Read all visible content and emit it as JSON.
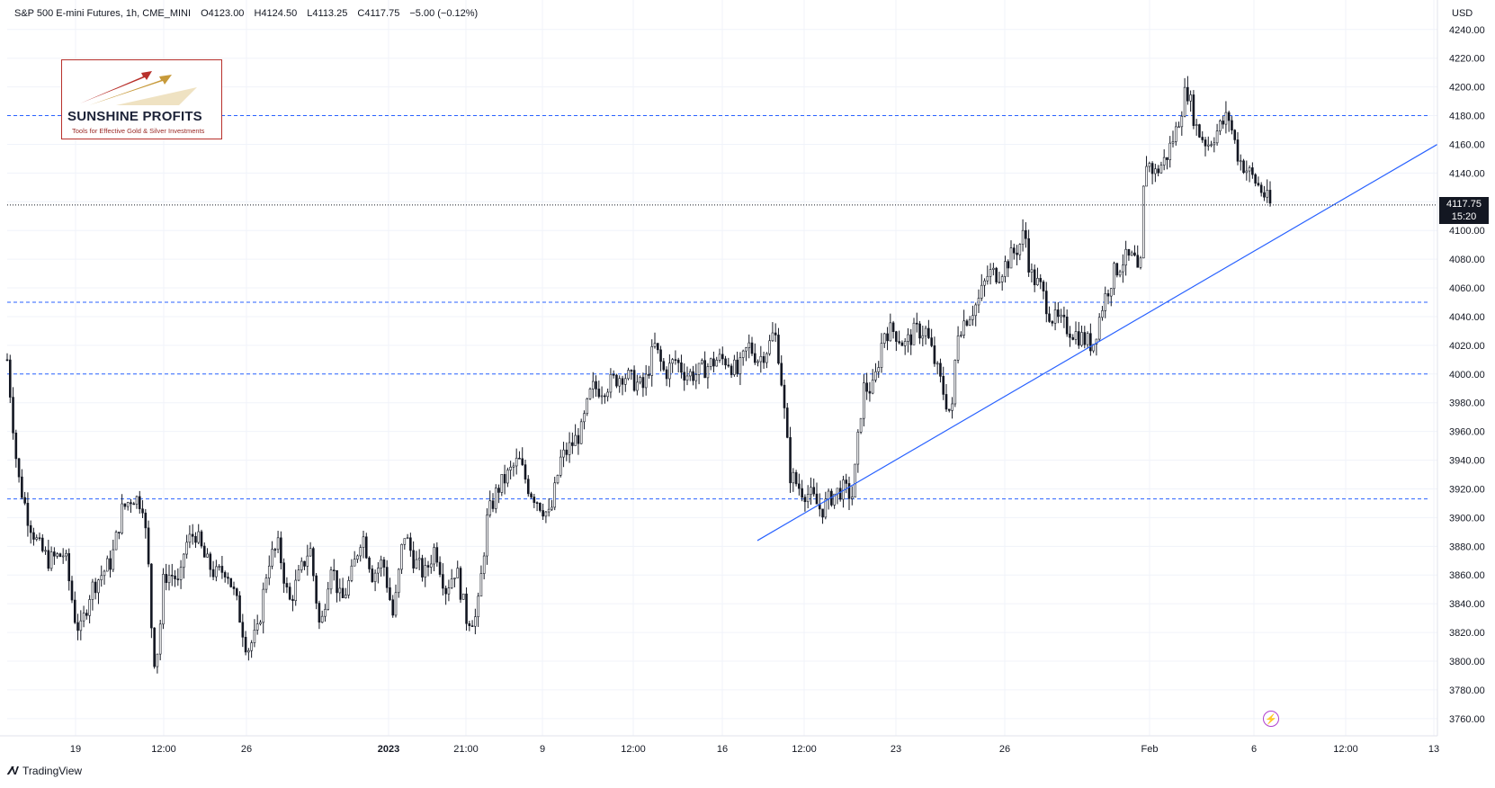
{
  "header": {
    "symbol": "S&P 500 E-mini Futures, 1h, CME_MINI",
    "open": "O4123.00",
    "high": "H4124.50",
    "low": "L4113.25",
    "close": "C4117.75",
    "change": "−5.00 (−0.12%)"
  },
  "price_scale": {
    "currency": "USD"
  },
  "last_price": {
    "value": "4117.75",
    "countdown": "15:20"
  },
  "logo": {
    "name": "SUNSHINE PROFITS",
    "tagline": "Tools for Effective Gold & Silver Investments"
  },
  "footer": {
    "brand": "TradingView",
    "logo_icon": "tradingview-logo-icon"
  },
  "alert_icon": "lightning-icon",
  "colors": {
    "candle": "#131722",
    "level_line": "#2962ff",
    "trendline": "#2962ff",
    "grid": "#f0f3fa",
    "tag_bg": "#131722"
  },
  "chart_data": {
    "type": "candlestick",
    "title": "S&P 500 E-mini Futures, 1h, CME_MINI",
    "ylabel": "USD",
    "ylim": [
      3748,
      4248
    ],
    "y_ticks": [
      3760,
      3780,
      3800,
      3820,
      3840,
      3860,
      3880,
      3900,
      3920,
      3940,
      3960,
      3980,
      4000,
      4020,
      4040,
      4060,
      4080,
      4100,
      4120,
      4140,
      4160,
      4180,
      4200,
      4220,
      4240
    ],
    "y_tick_labels": [
      "3760.00",
      "3780.00",
      "3800.00",
      "3820.00",
      "3840.00",
      "3860.00",
      "3880.00",
      "3900.00",
      "3920.00",
      "3940.00",
      "3960.00",
      "3980.00",
      "4000.00",
      "4020.00",
      "4040.00",
      "4060.00",
      "4080.00",
      "4100.00",
      "4120.00",
      "4140.00",
      "4160.00",
      "4180.00",
      "4200.00",
      "4220.00",
      "4240.00"
    ],
    "x_ticks": [
      "19",
      "12:00",
      "26",
      "2023",
      "21:00",
      "9",
      "12:00",
      "16",
      "12:00",
      "23",
      "26",
      "Feb",
      "6",
      "12:00",
      "13"
    ],
    "bold_x_ticks": [
      "2023"
    ],
    "horizontal_levels": [
      4180,
      4050,
      4000,
      3913
    ],
    "last_price": 4117.75,
    "trendline": {
      "from": [
        0.5635,
        3884
      ],
      "to": [
        1.0,
        4160
      ]
    },
    "path": [
      [
        0.0,
        4010
      ],
      [
        0.01,
        3930
      ],
      [
        0.02,
        3900
      ],
      [
        0.03,
        3880
      ],
      [
        0.04,
        3870
      ],
      [
        0.055,
        3875
      ],
      [
        0.065,
        3830
      ],
      [
        0.07,
        3820
      ],
      [
        0.08,
        3850
      ],
      [
        0.09,
        3860
      ],
      [
        0.1,
        3870
      ],
      [
        0.11,
        3905
      ],
      [
        0.12,
        3915
      ],
      [
        0.13,
        3910
      ],
      [
        0.135,
        3870
      ],
      [
        0.14,
        3800
      ],
      [
        0.145,
        3810
      ],
      [
        0.15,
        3860
      ],
      [
        0.16,
        3860
      ],
      [
        0.165,
        3850
      ],
      [
        0.17,
        3880
      ],
      [
        0.18,
        3890
      ],
      [
        0.19,
        3870
      ],
      [
        0.2,
        3860
      ],
      [
        0.21,
        3865
      ],
      [
        0.22,
        3840
      ],
      [
        0.23,
        3808
      ],
      [
        0.24,
        3820
      ],
      [
        0.25,
        3870
      ],
      [
        0.26,
        3880
      ],
      [
        0.27,
        3840
      ],
      [
        0.28,
        3860
      ],
      [
        0.29,
        3880
      ],
      [
        0.3,
        3820
      ],
      [
        0.31,
        3870
      ],
      [
        0.32,
        3840
      ],
      [
        0.33,
        3860
      ],
      [
        0.34,
        3890
      ],
      [
        0.35,
        3860
      ],
      [
        0.36,
        3870
      ],
      [
        0.37,
        3830
      ],
      [
        0.38,
        3890
      ],
      [
        0.39,
        3870
      ],
      [
        0.4,
        3860
      ],
      [
        0.41,
        3880
      ],
      [
        0.42,
        3850
      ],
      [
        0.43,
        3865
      ],
      [
        0.44,
        3830
      ],
      [
        0.45,
        3830
      ],
      [
        0.46,
        3900
      ],
      [
        0.47,
        3920
      ],
      [
        0.48,
        3930
      ],
      [
        0.49,
        3940
      ],
      [
        0.5,
        3920
      ],
      [
        0.51,
        3910
      ],
      [
        0.52,
        3900
      ],
      [
        0.53,
        3940
      ],
      [
        0.54,
        3950
      ],
      [
        0.55,
        3960
      ],
      [
        0.56,
        3990
      ],
      [
        0.57,
        3990
      ],
      [
        0.58,
        3995
      ],
      [
        0.59,
        4000
      ],
      [
        0.6,
        3995
      ],
      [
        0.61,
        3990
      ],
      [
        0.62,
        4020
      ],
      [
        0.63,
        4000
      ],
      [
        0.64,
        4010
      ],
      [
        0.65,
        4000
      ],
      [
        0.66,
        4000
      ],
      [
        0.67,
        4005
      ],
      [
        0.68,
        4010
      ],
      [
        0.69,
        4010
      ],
      [
        0.7,
        4000
      ],
      [
        0.71,
        4020
      ],
      [
        0.72,
        4010
      ],
      [
        0.73,
        4020
      ],
      [
        0.735,
        4030
      ],
      [
        0.74,
        4010
      ],
      [
        0.75,
        3930
      ],
      [
        0.76,
        3920
      ],
      [
        0.77,
        3915
      ],
      [
        0.78,
        3905
      ],
      [
        0.79,
        3915
      ],
      [
        0.8,
        3920
      ],
      [
        0.81,
        3915
      ],
      [
        0.82,
        3990
      ],
      [
        0.83,
        3990
      ],
      [
        0.84,
        4030
      ],
      [
        0.85,
        4030
      ],
      [
        0.86,
        4020
      ],
      [
        0.87,
        4030
      ],
      [
        0.88,
        4030
      ],
      [
        0.89,
        4005
      ],
      [
        0.9,
        3980
      ],
      [
        0.905,
        3970
      ],
      [
        0.91,
        4030
      ],
      [
        0.92,
        4040
      ],
      [
        0.93,
        4050
      ],
      [
        0.94,
        4070
      ],
      [
        0.95,
        4070
      ],
      [
        0.96,
        4080
      ],
      [
        0.97,
        4090
      ],
      [
        0.975,
        4100
      ],
      [
        0.98,
        4070
      ],
      [
        0.99,
        4060
      ],
      [
        1.0,
        4040
      ],
      [
        1.01,
        4035
      ],
      [
        1.02,
        4030
      ],
      [
        1.03,
        4025
      ],
      [
        1.04,
        4020
      ],
      [
        1.05,
        4050
      ],
      [
        1.06,
        4070
      ],
      [
        1.07,
        4080
      ],
      [
        1.08,
        4080
      ],
      [
        1.085,
        4060
      ],
      [
        1.09,
        4150
      ],
      [
        1.1,
        4140
      ],
      [
        1.11,
        4150
      ],
      [
        1.12,
        4170
      ],
      [
        1.13,
        4200
      ],
      [
        1.14,
        4170
      ],
      [
        1.15,
        4160
      ],
      [
        1.16,
        4170
      ],
      [
        1.17,
        4180
      ],
      [
        1.18,
        4150
      ],
      [
        1.19,
        4140
      ],
      [
        1.2,
        4130
      ],
      [
        1.21,
        4117.75
      ]
    ]
  }
}
